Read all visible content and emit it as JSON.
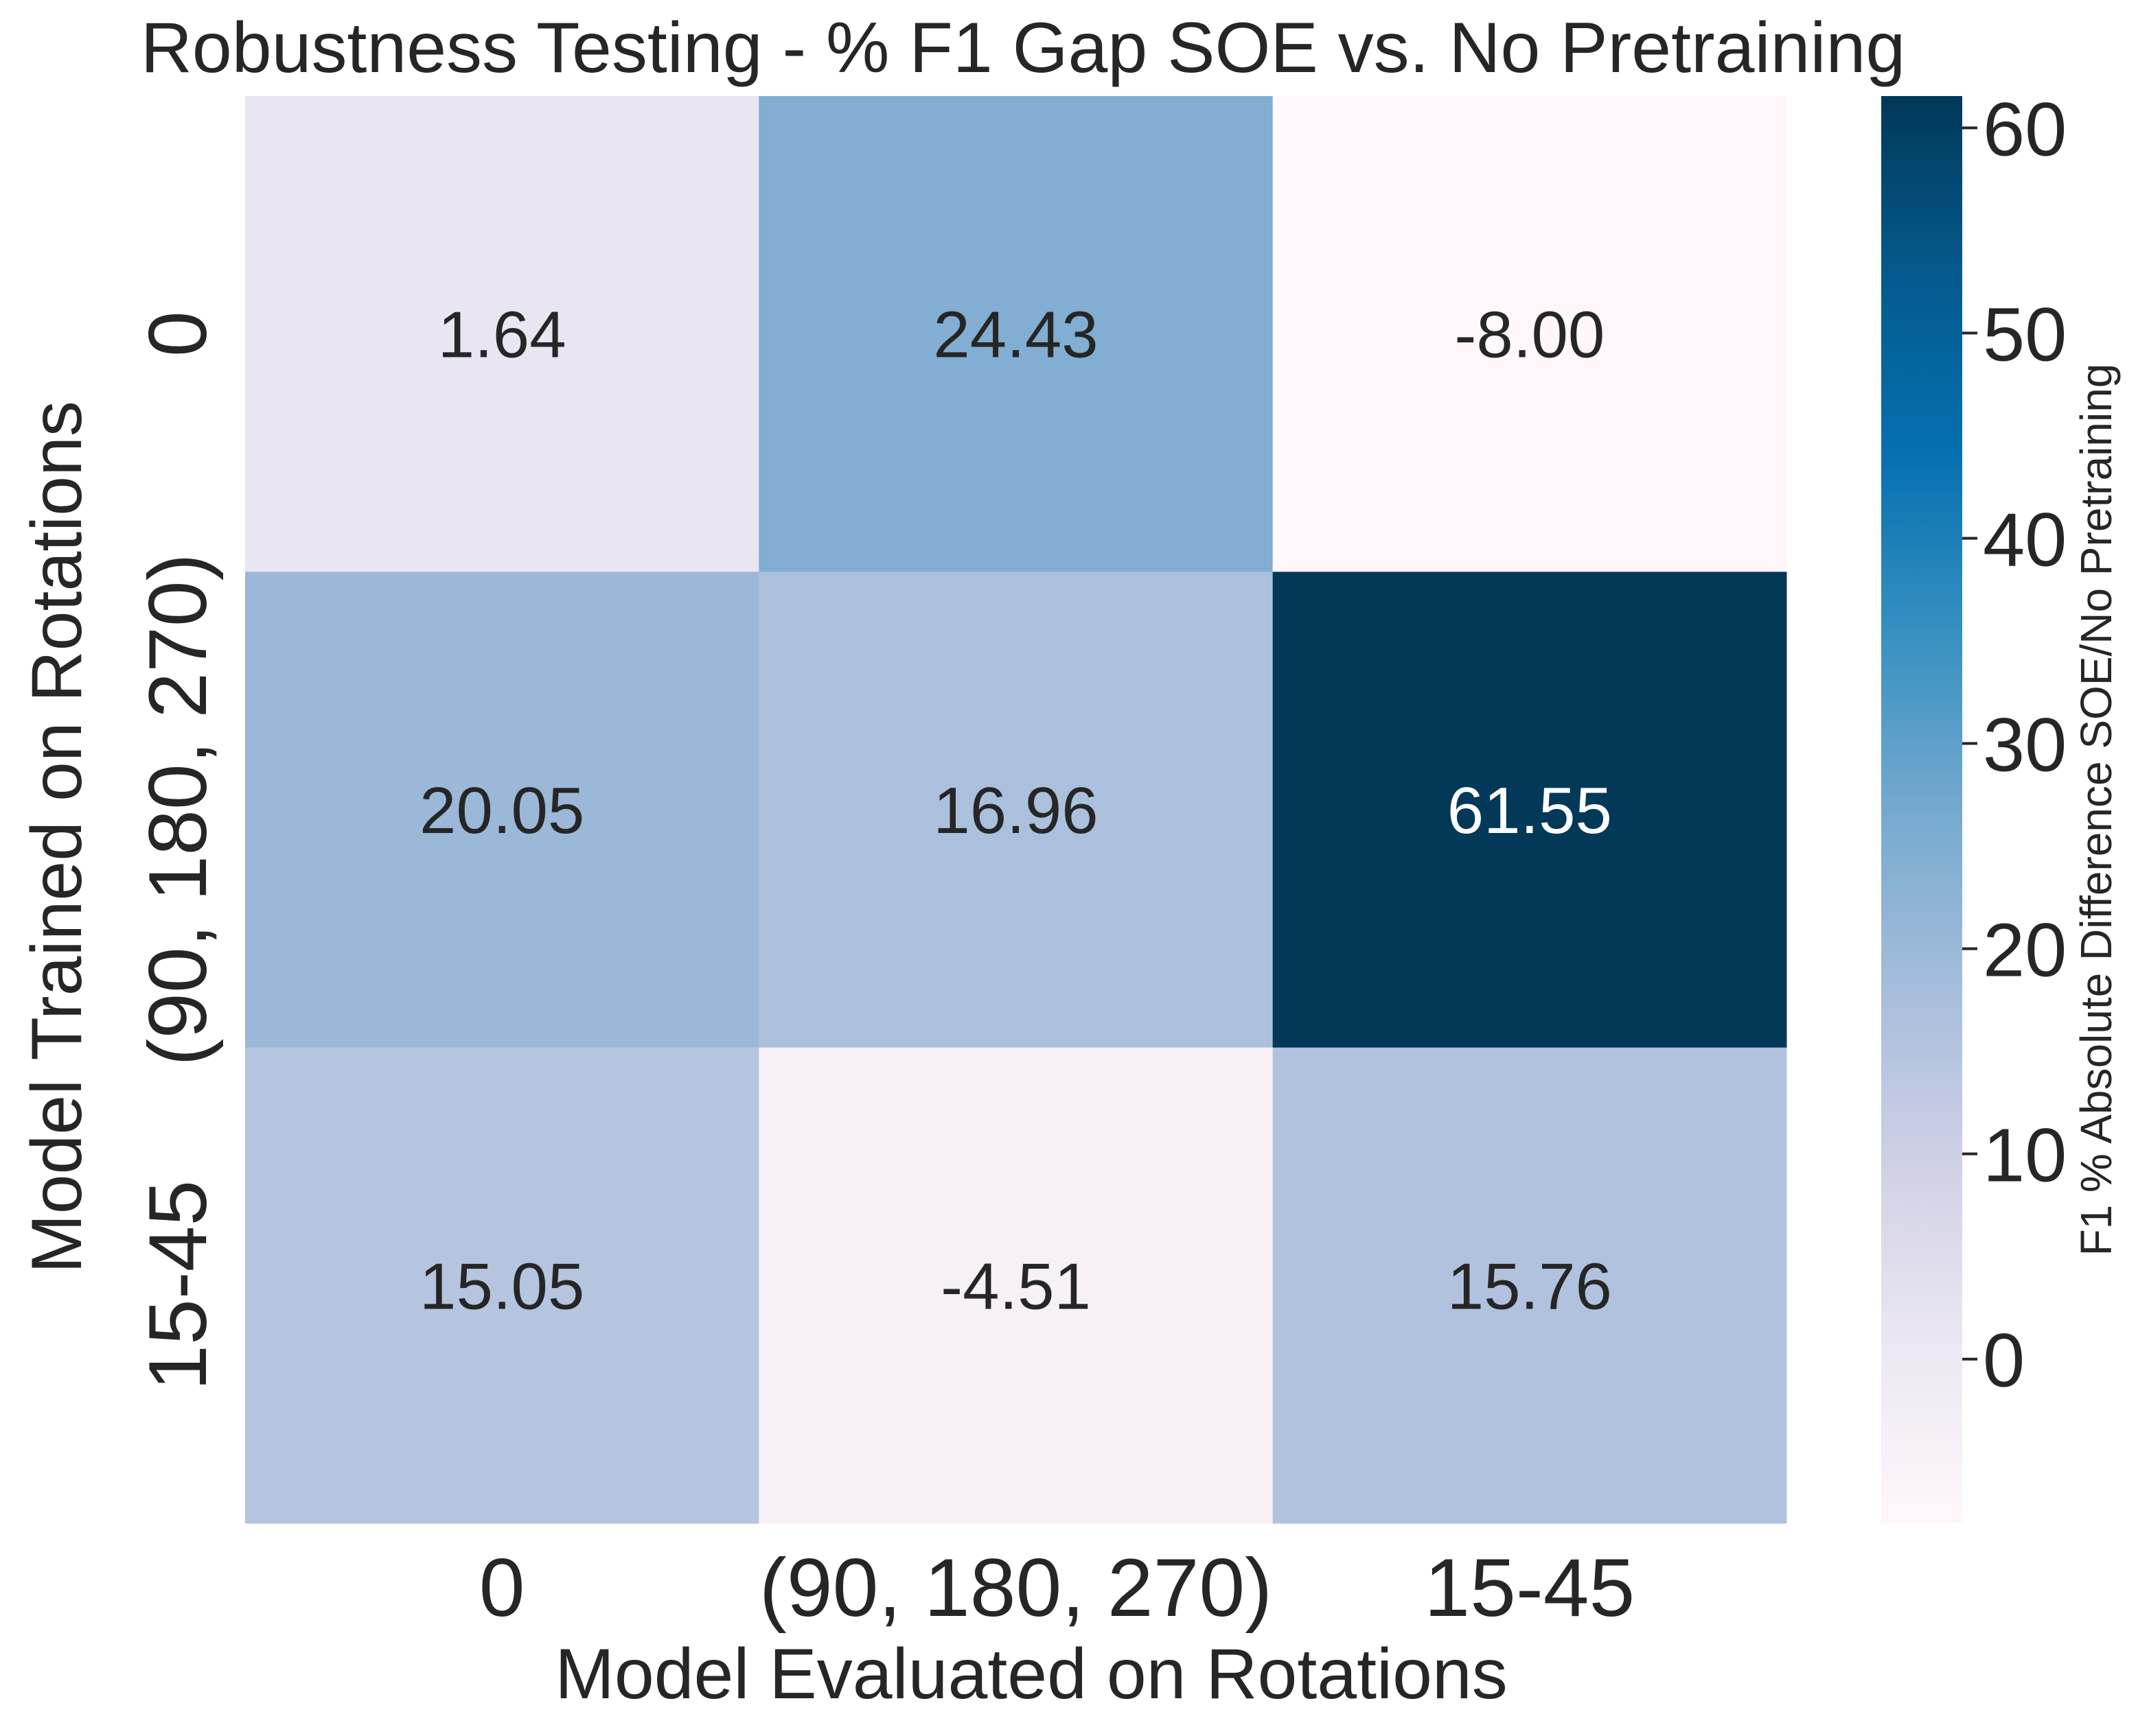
{
  "chart_data": {
    "type": "heatmap",
    "title": "Robustness Testing - % F1 Gap SOE vs. No Pretraining",
    "xlabel": "Model Evaluated on Rotations",
    "ylabel": "Model Trained on Rotations",
    "x_categories": [
      "0",
      "(90, 180, 270)",
      "15-45"
    ],
    "y_categories": [
      "0",
      "(90, 180, 270)",
      "15-45"
    ],
    "values": [
      [
        1.64,
        24.43,
        -8.0
      ],
      [
        20.05,
        16.96,
        61.55
      ],
      [
        15.05,
        -4.51,
        15.76
      ]
    ],
    "value_labels": [
      [
        "1.64",
        "24.43",
        "-8.00"
      ],
      [
        "20.05",
        "16.96",
        "61.55"
      ],
      [
        "15.05",
        "-4.51",
        "15.76"
      ]
    ],
    "colorbar": {
      "label": "F1 % Absolute Difference SOE/No Pretraining",
      "range": [
        -8.0,
        61.55
      ],
      "ticks": [
        0,
        10,
        20,
        30,
        40,
        50,
        60
      ],
      "tick_labels": [
        "0",
        "10",
        "20",
        "30",
        "40",
        "50",
        "60"
      ],
      "colormap": "PuBu",
      "colors": [
        "#fff7fb",
        "#ece7f2",
        "#d0d1e6",
        "#a6bddb",
        "#74a9cf",
        "#3690c0",
        "#0570b0",
        "#045a8d",
        "#023858"
      ]
    },
    "grid": false,
    "legend": "colorbar-right"
  }
}
